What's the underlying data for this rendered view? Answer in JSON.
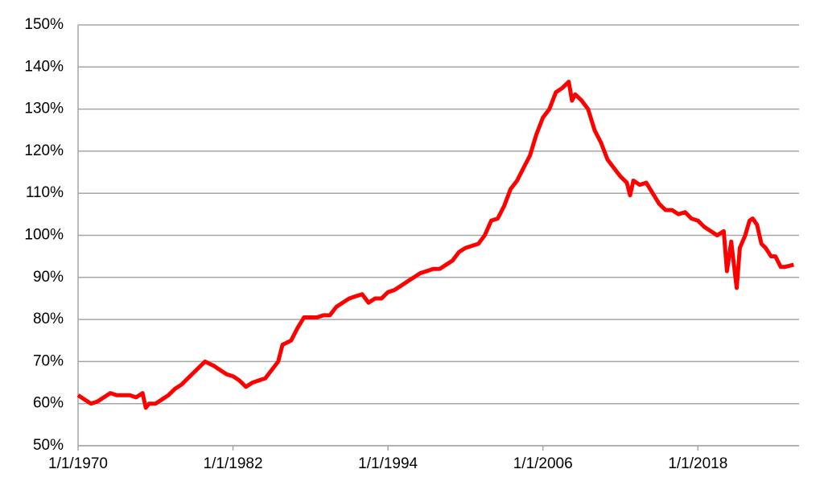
{
  "chart_data": {
    "type": "line",
    "x": [
      "1/1/1970",
      "7/1/1970",
      "1/1/1971",
      "7/1/1971",
      "1/1/1972",
      "7/1/1972",
      "1/1/1973",
      "7/1/1973",
      "1/1/1974",
      "7/1/1974",
      "1/1/1975",
      "4/1/1975",
      "7/1/1975",
      "1/1/1976",
      "7/1/1976",
      "1/1/1977",
      "7/1/1977",
      "1/1/1978",
      "7/1/1978",
      "1/1/1979",
      "7/1/1979",
      "11/1/1979",
      "7/1/1980",
      "1/1/1981",
      "7/1/1981",
      "1/1/1982",
      "7/1/1982",
      "1/1/1983",
      "7/1/1983",
      "1/1/1984",
      "7/1/1984",
      "1/1/1985",
      "7/1/1985",
      "11/1/1985",
      "7/1/1986",
      "1/1/1987",
      "7/1/1987",
      "1/1/1988",
      "7/1/1988",
      "1/1/1989",
      "7/1/1989",
      "1/1/1990",
      "7/1/1990",
      "1/1/1991",
      "7/1/1991",
      "1/1/1992",
      "7/1/1992",
      "1/1/1993",
      "7/1/1993",
      "1/1/1994",
      "7/1/1994",
      "1/1/1995",
      "7/1/1995",
      "1/1/1996",
      "7/1/1996",
      "1/1/1997",
      "7/1/1997",
      "1/1/1998",
      "7/1/1998",
      "1/1/1999",
      "7/1/1999",
      "1/1/2000",
      "7/1/2000",
      "1/1/2001",
      "7/1/2001",
      "1/1/2002",
      "7/1/2002",
      "1/1/2003",
      "7/1/2003",
      "1/1/2004",
      "7/1/2004",
      "1/1/2005",
      "7/1/2005",
      "1/1/2006",
      "7/1/2006",
      "1/1/2007",
      "7/1/2007",
      "1/1/2008",
      "4/1/2008",
      "7/1/2008",
      "1/1/2009",
      "7/1/2009",
      "1/1/2010",
      "7/1/2010",
      "1/1/2011",
      "7/1/2011",
      "1/1/2012",
      "7/1/2012",
      "10/1/2012",
      "1/1/2013",
      "7/1/2013",
      "1/1/2014",
      "7/1/2014",
      "1/1/2015",
      "7/1/2015",
      "1/1/2016",
      "7/1/2016",
      "1/1/2017",
      "7/1/2017",
      "1/1/2018",
      "7/1/2018",
      "1/1/2019",
      "7/1/2019",
      "1/1/2020",
      "4/1/2020",
      "8/1/2020",
      "1/1/2021",
      "4/1/2021",
      "9/1/2021",
      "1/1/2022",
      "4/1/2022",
      "8/1/2022",
      "12/1/2022",
      "4/1/2023",
      "9/1/2023",
      "1/1/2024",
      "6/1/2024",
      "10/1/2024",
      "6/1/2025"
    ],
    "series": [
      {
        "color": "#ff0000",
        "values": [
          62,
          61,
          60,
          60.5,
          61.5,
          62.5,
          62,
          62,
          62,
          61.5,
          62.5,
          59,
          60,
          60,
          61,
          62,
          63.5,
          64.5,
          66,
          67.5,
          69,
          70,
          69,
          68,
          67,
          66.5,
          65.5,
          64,
          65,
          65.5,
          66,
          68,
          70,
          74,
          75,
          78,
          80.5,
          80.5,
          80.5,
          81,
          81,
          83,
          84,
          85,
          85.5,
          86,
          84,
          85,
          85,
          86.5,
          87,
          88,
          89,
          90,
          91,
          91.5,
          92,
          92,
          93,
          94,
          96,
          97,
          97.5,
          98,
          100,
          103.5,
          104,
          107,
          111,
          113,
          116,
          119,
          124,
          128,
          130,
          134,
          135,
          136.5,
          132,
          133.5,
          132,
          130,
          125,
          122,
          118,
          116,
          114,
          112.5,
          109.5,
          113,
          112,
          112.5,
          110,
          107.5,
          106,
          106,
          105,
          105.5,
          104,
          103.5,
          102,
          101,
          100,
          101,
          91.5,
          98.5,
          87.5,
          97,
          100,
          103.5,
          104,
          102.5,
          98,
          97,
          95,
          95,
          92.5,
          92.5,
          93
        ]
      }
    ],
    "xlim": [
      "1/1/1970",
      "11/1/2025"
    ],
    "xticks": [
      "1/1/1970",
      "1/1/1982",
      "1/1/1994",
      "1/1/2006",
      "1/1/2018"
    ],
    "ylim": [
      50,
      150
    ],
    "yticks": [
      {
        "value": 50,
        "label": "50%"
      },
      {
        "value": 60,
        "label": "60%"
      },
      {
        "value": 70,
        "label": "70%"
      },
      {
        "value": 80,
        "label": "80%"
      },
      {
        "value": 90,
        "label": "90%"
      },
      {
        "value": 100,
        "label": "100%"
      },
      {
        "value": 110,
        "label": "110%"
      },
      {
        "value": 120,
        "label": "120%"
      },
      {
        "value": 130,
        "label": "130%"
      },
      {
        "value": 140,
        "label": "140%"
      },
      {
        "value": 150,
        "label": "150%"
      }
    ],
    "grid": true
  }
}
